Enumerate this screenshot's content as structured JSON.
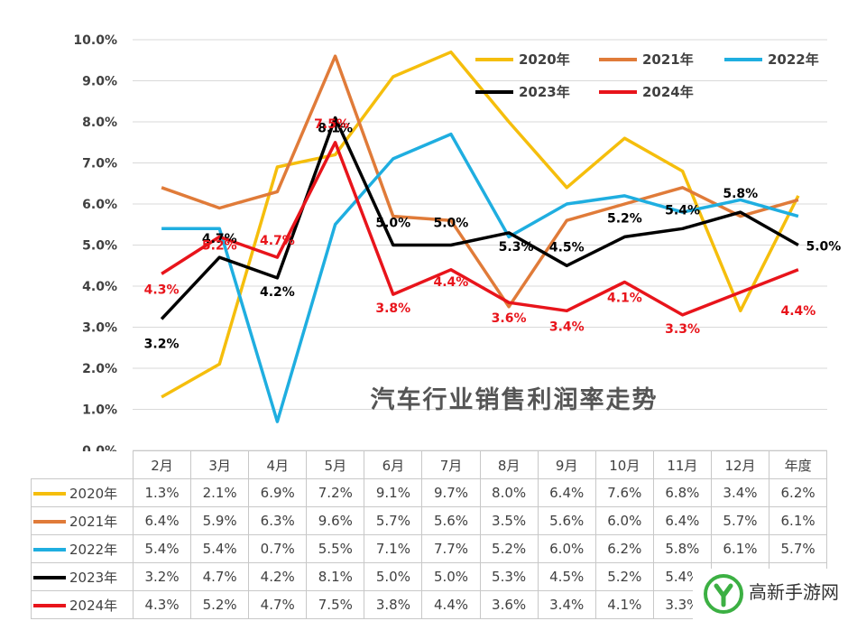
{
  "chart_data": {
    "type": "line",
    "title": "汽车行业销售利润率走势",
    "categories": [
      "2月",
      "3月",
      "4月",
      "5月",
      "6月",
      "7月",
      "8月",
      "9月",
      "10月",
      "11月",
      "12月",
      "年度"
    ],
    "y_ticks": [
      "0.0%",
      "1.0%",
      "2.0%",
      "3.0%",
      "4.0%",
      "5.0%",
      "6.0%",
      "7.0%",
      "8.0%",
      "9.0%",
      "10.0%"
    ],
    "ylim": [
      0,
      10
    ],
    "grid": true,
    "legend_position": "top-right",
    "series": [
      {
        "name": "2020年",
        "color": "#F5BE0C",
        "values": [
          1.3,
          2.1,
          6.9,
          7.2,
          9.1,
          9.7,
          8.0,
          6.4,
          7.6,
          6.8,
          3.4,
          6.2
        ],
        "cells": [
          "1.3%",
          "2.1%",
          "6.9%",
          "7.2%",
          "9.1%",
          "9.7%",
          "8.0%",
          "6.4%",
          "7.6%",
          "6.8%",
          "3.4%",
          "6.2%"
        ]
      },
      {
        "name": "2021年",
        "color": "#E07B39",
        "values": [
          6.4,
          5.9,
          6.3,
          9.6,
          5.7,
          5.6,
          3.5,
          5.6,
          6.0,
          6.4,
          5.7,
          6.1
        ],
        "cells": [
          "6.4%",
          "5.9%",
          "6.3%",
          "9.6%",
          "5.7%",
          "5.6%",
          "3.5%",
          "5.6%",
          "6.0%",
          "6.4%",
          "5.7%",
          "6.1%"
        ]
      },
      {
        "name": "2022年",
        "color": "#1FAEE0",
        "values": [
          5.4,
          5.4,
          0.7,
          5.5,
          7.1,
          7.7,
          5.2,
          6.0,
          6.2,
          5.8,
          6.1,
          5.7
        ],
        "cells": [
          "5.4%",
          "5.4%",
          "0.7%",
          "5.5%",
          "7.1%",
          "7.7%",
          "5.2%",
          "6.0%",
          "6.2%",
          "5.8%",
          "6.1%",
          "5.7%"
        ]
      },
      {
        "name": "2023年",
        "color": "#000000",
        "values": [
          3.2,
          4.7,
          4.2,
          8.1,
          5.0,
          5.0,
          5.3,
          4.5,
          5.2,
          5.4,
          5.8,
          5.0
        ],
        "cells": [
          "3.2%",
          "4.7%",
          "4.2%",
          "8.1%",
          "5.0%",
          "5.0%",
          "5.3%",
          "4.5%",
          "5.2%",
          "5.4%",
          "5.8%",
          "5.0%"
        ]
      },
      {
        "name": "2024年",
        "color": "#E8141B",
        "values": [
          4.3,
          5.2,
          4.7,
          7.5,
          3.8,
          4.4,
          3.6,
          3.4,
          4.1,
          3.3,
          null,
          4.4
        ],
        "cells": [
          "4.3%",
          "5.2%",
          "4.7%",
          "7.5%",
          "3.8%",
          "4.4%",
          "3.6%",
          "3.4%",
          "4.1%",
          "3.3%",
          "",
          ""
        ]
      }
    ],
    "data_labels": [
      {
        "series": "2023年",
        "index": 0,
        "text": "3.2%"
      },
      {
        "series": "2023年",
        "index": 1,
        "text": "4.7%"
      },
      {
        "series": "2023年",
        "index": 2,
        "text": "4.2%"
      },
      {
        "series": "2023年",
        "index": 3,
        "text": "8.1%"
      },
      {
        "series": "2023年",
        "index": 4,
        "text": "5.0%"
      },
      {
        "series": "2023年",
        "index": 5,
        "text": "5.0%"
      },
      {
        "series": "2023年",
        "index": 6,
        "text": "5.3%"
      },
      {
        "series": "2023年",
        "index": 7,
        "text": "4.5%"
      },
      {
        "series": "2023年",
        "index": 8,
        "text": "5.2%"
      },
      {
        "series": "2023年",
        "index": 9,
        "text": "5.4%"
      },
      {
        "series": "2023年",
        "index": 10,
        "text": "5.8%"
      },
      {
        "series": "2023年",
        "index": 11,
        "text": "5.0%"
      },
      {
        "series": "2024年",
        "index": 0,
        "text": "4.3%"
      },
      {
        "series": "2024年",
        "index": 1,
        "text": "5.2%"
      },
      {
        "series": "2024年",
        "index": 2,
        "text": "4.7%"
      },
      {
        "series": "2024年",
        "index": 3,
        "text": "7.5%"
      },
      {
        "series": "2024年",
        "index": 4,
        "text": "3.8%"
      },
      {
        "series": "2024年",
        "index": 5,
        "text": "4.4%"
      },
      {
        "series": "2024年",
        "index": 6,
        "text": "3.6%"
      },
      {
        "series": "2024年",
        "index": 7,
        "text": "3.4%"
      },
      {
        "series": "2024年",
        "index": 8,
        "text": "4.1%"
      },
      {
        "series": "2024年",
        "index": 9,
        "text": "3.3%"
      },
      {
        "series": "2024年",
        "index": 11,
        "text": "4.4%"
      }
    ]
  },
  "watermark": {
    "text": "高新手游网",
    "logo_color": "#3CB043"
  }
}
